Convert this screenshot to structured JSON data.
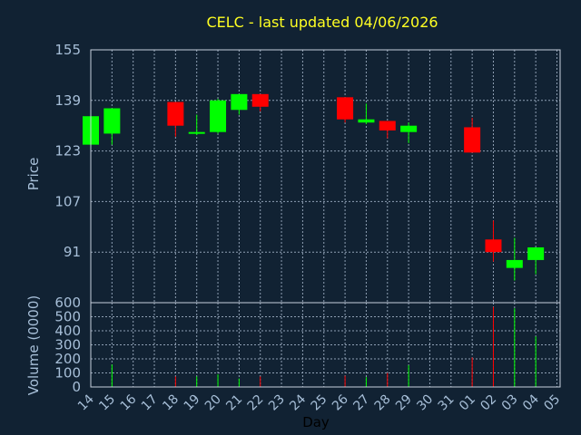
{
  "chart_data": {
    "type": "candlestick",
    "title": "CELC - last updated 04/06/2026",
    "xlabel": "Day",
    "price_axis": {
      "ylabel": "Price",
      "ylim": [
        75,
        155
      ],
      "ticks": [
        155,
        139,
        123,
        107,
        91
      ]
    },
    "volume_axis": {
      "ylabel": "Volume (0000)",
      "ylim": [
        0,
        600
      ],
      "ticks": [
        600,
        500,
        400,
        300,
        200,
        100,
        0
      ]
    },
    "x_ticks": [
      "14",
      "15",
      "16",
      "17",
      "18",
      "19",
      "20",
      "21",
      "22",
      "23",
      "24",
      "25",
      "26",
      "27",
      "28",
      "29",
      "30",
      "31",
      "01",
      "02",
      "03",
      "04",
      "05"
    ],
    "grid": true,
    "colors": {
      "up": "#00ff00",
      "down": "#ff0000",
      "title": "#ffff22",
      "axis_text": "#a7bfd8",
      "background": "#112233"
    },
    "candles": [
      {
        "day": "14",
        "open": 125.0,
        "high": 134.0,
        "low": 124.5,
        "close": 134.0
      },
      {
        "day": "15",
        "open": 128.5,
        "high": 136.5,
        "low": 125.0,
        "close": 136.5
      },
      {
        "day": "18",
        "open": 138.5,
        "high": 138.5,
        "low": 127.5,
        "close": 131.0
      },
      {
        "day": "19",
        "open": 128.5,
        "high": 134.5,
        "low": 128.0,
        "close": 129.0
      },
      {
        "day": "20",
        "open": 129.0,
        "high": 139.5,
        "low": 128.5,
        "close": 139.0
      },
      {
        "day": "21",
        "open": 136.0,
        "high": 141.0,
        "low": 134.5,
        "close": 141.0
      },
      {
        "day": "22",
        "open": 141.0,
        "high": 141.0,
        "low": 135.5,
        "close": 137.0
      },
      {
        "day": "26",
        "open": 140.0,
        "high": 140.0,
        "low": 132.0,
        "close": 133.0
      },
      {
        "day": "27",
        "open": 132.0,
        "high": 138.0,
        "low": 131.5,
        "close": 133.0
      },
      {
        "day": "28",
        "open": 132.5,
        "high": 132.5,
        "low": 127.0,
        "close": 129.5
      },
      {
        "day": "29",
        "open": 129.0,
        "high": 132.0,
        "low": 125.5,
        "close": 131.0
      },
      {
        "day": "01",
        "open": 130.5,
        "high": 133.5,
        "low": 122.5,
        "close": 122.5
      },
      {
        "day": "02",
        "open": 95.0,
        "high": 101.0,
        "low": 88.0,
        "close": 91.0
      },
      {
        "day": "03",
        "open": 86.0,
        "high": 95.5,
        "low": 82.0,
        "close": 88.5
      },
      {
        "day": "04",
        "open": 88.5,
        "high": 92.5,
        "low": 84.0,
        "close": 92.5
      }
    ],
    "volume": [
      {
        "day": "15",
        "value": 160,
        "direction": "up"
      },
      {
        "day": "18",
        "value": 75,
        "direction": "down"
      },
      {
        "day": "19",
        "value": 75,
        "direction": "up"
      },
      {
        "day": "20",
        "value": 90,
        "direction": "up"
      },
      {
        "day": "21",
        "value": 60,
        "direction": "up"
      },
      {
        "day": "22",
        "value": 75,
        "direction": "down"
      },
      {
        "day": "26",
        "value": 80,
        "direction": "down"
      },
      {
        "day": "27",
        "value": 70,
        "direction": "up"
      },
      {
        "day": "28",
        "value": 100,
        "direction": "down"
      },
      {
        "day": "29",
        "value": 155,
        "direction": "up"
      },
      {
        "day": "01",
        "value": 210,
        "direction": "down"
      },
      {
        "day": "02",
        "value": 570,
        "direction": "down"
      },
      {
        "day": "03",
        "value": 560,
        "direction": "up"
      },
      {
        "day": "04",
        "value": 360,
        "direction": "up"
      }
    ]
  }
}
